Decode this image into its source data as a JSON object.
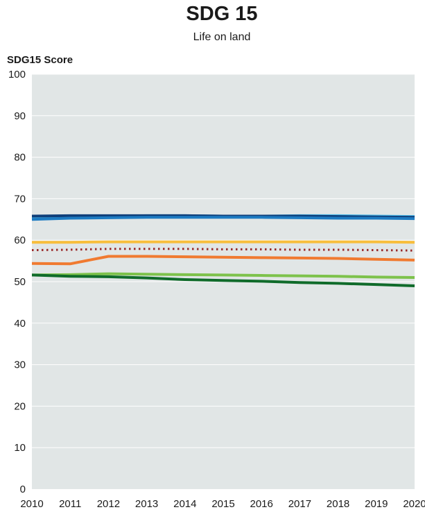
{
  "chart_data": {
    "type": "line",
    "title": "SDG 15",
    "subtitle": "Life on land",
    "ylabel": "SDG15 Score",
    "xlabel": "",
    "ylim": [
      0,
      100
    ],
    "xlim": [
      2010,
      2020
    ],
    "yticks": [
      0,
      10,
      20,
      30,
      40,
      50,
      60,
      70,
      80,
      90,
      100
    ],
    "x": [
      2010,
      2011,
      2012,
      2013,
      2014,
      2015,
      2016,
      2017,
      2018,
      2019,
      2020
    ],
    "grid": "horizontal",
    "background": "#e1e6e6",
    "series": [
      {
        "color": "#49b6e6",
        "style": "solid",
        "values": [
          65.3,
          65.5,
          65.7,
          65.9,
          65.9,
          65.8,
          65.8,
          65.9,
          65.9,
          65.8,
          65.7
        ]
      },
      {
        "color": "#0f3f7a",
        "style": "solid",
        "values": [
          65.8,
          65.9,
          65.9,
          65.9,
          65.9,
          65.8,
          65.8,
          65.8,
          65.7,
          65.6,
          65.5
        ]
      },
      {
        "color": "#1d7bc2",
        "style": "solid",
        "values": [
          65.0,
          65.3,
          65.4,
          65.5,
          65.5,
          65.5,
          65.5,
          65.4,
          65.3,
          65.3,
          65.2
        ]
      },
      {
        "color": "#f8be3c",
        "style": "solid",
        "values": [
          59.5,
          59.5,
          59.6,
          59.6,
          59.6,
          59.6,
          59.6,
          59.6,
          59.6,
          59.6,
          59.5
        ]
      },
      {
        "color": "#9a2a2a",
        "style": "dotted",
        "values": [
          57.6,
          57.7,
          57.9,
          57.9,
          57.9,
          57.8,
          57.8,
          57.7,
          57.7,
          57.6,
          57.5
        ]
      },
      {
        "color": "#f07a30",
        "style": "solid",
        "values": [
          54.4,
          54.3,
          56.1,
          56.1,
          56.0,
          55.9,
          55.8,
          55.7,
          55.6,
          55.4,
          55.2
        ]
      },
      {
        "color": "#7dc24b",
        "style": "solid",
        "values": [
          51.6,
          51.7,
          51.9,
          51.8,
          51.7,
          51.6,
          51.5,
          51.4,
          51.3,
          51.1,
          51.0
        ]
      },
      {
        "color": "#0f6b2a",
        "style": "solid",
        "values": [
          51.6,
          51.3,
          51.2,
          50.9,
          50.5,
          50.3,
          50.1,
          49.8,
          49.6,
          49.3,
          49.0
        ]
      }
    ]
  }
}
